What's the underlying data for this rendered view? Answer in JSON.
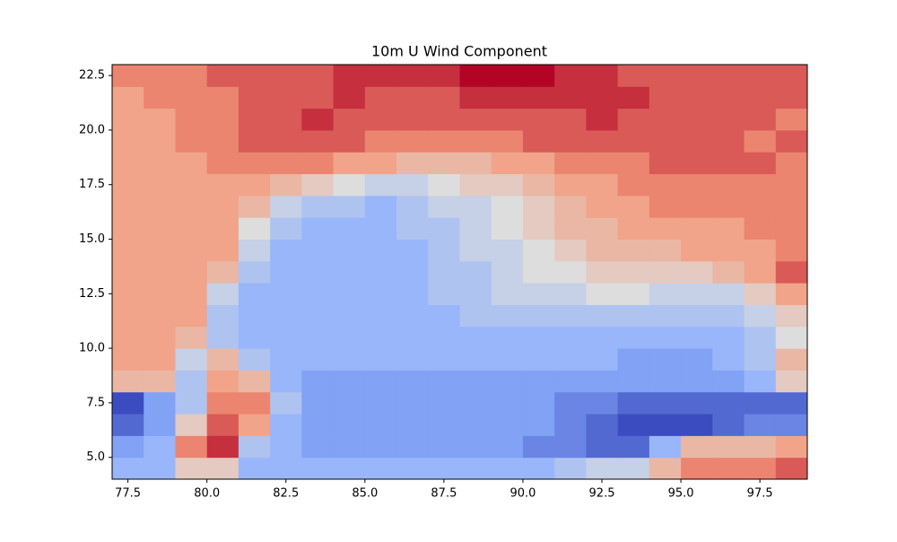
{
  "chart_data": {
    "type": "heatmap",
    "title": "10m U Wind Component",
    "colormap": "coolwarm",
    "xlim": [
      77,
      99
    ],
    "ylim": [
      4,
      23
    ],
    "x": [
      77,
      78,
      79,
      80,
      81,
      82,
      83,
      84,
      85,
      86,
      87,
      88,
      89,
      90,
      91,
      92,
      93,
      94,
      95,
      96,
      97,
      98,
      99
    ],
    "y": [
      4,
      5,
      6,
      7,
      8,
      9,
      10,
      11,
      12,
      13,
      14,
      15,
      16,
      17,
      18,
      19,
      20,
      21,
      22,
      23
    ],
    "xticks": [
      77.5,
      {
        "value": 80,
        "label": "80.0"
      },
      82.5,
      {
        "value": 85,
        "label": "85.0"
      },
      87.5,
      {
        "value": 90,
        "label": "90.0"
      },
      92.5,
      {
        "value": 95,
        "label": "95.0"
      },
      97.5
    ],
    "yticks": [
      {
        "value": 5,
        "label": "5.0"
      },
      7.5,
      {
        "value": 10,
        "label": "10.0"
      },
      12.5,
      {
        "value": 15,
        "label": "15.0"
      },
      17.5,
      {
        "value": 20,
        "label": "20.0"
      },
      22.5
    ],
    "values": [
      [
        -3,
        -3,
        1,
        1,
        -3,
        -3,
        -3,
        -3,
        -3,
        -3,
        -3,
        -3,
        -3,
        -3,
        -2,
        -1,
        -1,
        2,
        4,
        4,
        4,
        5
      ],
      [
        -4,
        -3,
        4,
        6,
        -2,
        -3,
        -4,
        -4,
        -4,
        -4,
        -4,
        -4,
        -4,
        -5,
        -5,
        -6,
        -6,
        -3,
        2,
        2,
        2,
        3
      ],
      [
        -6,
        -4,
        1,
        5,
        3,
        -3,
        -4,
        -4,
        -4,
        -4,
        -4,
        -4,
        -4,
        -4,
        -5,
        -6,
        -7,
        -7,
        -7,
        -6,
        -5,
        -5
      ],
      [
        -7,
        -4,
        -2,
        4,
        4,
        -2,
        -4,
        -4,
        -4,
        -4,
        -4,
        -4,
        -4,
        -4,
        -5,
        -5,
        -6,
        -6,
        -6,
        -6,
        -6,
        -6
      ],
      [
        2,
        2,
        -2,
        3,
        2,
        -3,
        -4,
        -4,
        -4,
        -4,
        -4,
        -4,
        -4,
        -4,
        -4,
        -4,
        -4,
        -4,
        -4,
        -4,
        -3,
        1
      ],
      [
        3,
        3,
        -1,
        2,
        -2,
        -3,
        -3,
        -3,
        -3,
        -3,
        -3,
        -3,
        -3,
        -3,
        -3,
        -3,
        -4,
        -4,
        -4,
        -3,
        -2,
        2
      ],
      [
        3,
        3,
        2,
        -2,
        -3,
        -3,
        -3,
        -3,
        -3,
        -3,
        -3,
        -3,
        -3,
        -3,
        -3,
        -3,
        -3,
        -3,
        -3,
        -3,
        -2,
        0
      ],
      [
        3,
        3,
        3,
        -2,
        -3,
        -3,
        -3,
        -3,
        -3,
        -3,
        -3,
        -2,
        -2,
        -2,
        -2,
        -2,
        -2,
        -2,
        -2,
        -2,
        -1,
        1
      ],
      [
        3,
        3,
        3,
        -1,
        -3,
        -3,
        -3,
        -3,
        -3,
        -3,
        -2,
        -2,
        -1,
        -1,
        -1,
        0,
        0,
        -1,
        -1,
        -1,
        1,
        3
      ],
      [
        3,
        3,
        3,
        2,
        -2,
        -3,
        -3,
        -3,
        -3,
        -3,
        -2,
        -2,
        -1,
        0,
        0,
        1,
        1,
        1,
        1,
        2,
        3,
        5
      ],
      [
        3,
        3,
        3,
        3,
        -1,
        -3,
        -3,
        -3,
        -3,
        -3,
        -2,
        -1,
        -1,
        0,
        1,
        2,
        2,
        2,
        3,
        3,
        3,
        4
      ],
      [
        3,
        3,
        3,
        3,
        0,
        -2,
        -3,
        -3,
        -3,
        -2,
        -2,
        -1,
        0,
        1,
        2,
        2,
        3,
        3,
        3,
        3,
        4,
        4
      ],
      [
        3,
        3,
        3,
        3,
        2,
        -1,
        -2,
        -2,
        -3,
        -2,
        -1,
        -1,
        0,
        1,
        2,
        3,
        3,
        4,
        4,
        4,
        4,
        4
      ],
      [
        3,
        3,
        3,
        3,
        3,
        2,
        1,
        0,
        -1,
        -1,
        0,
        1,
        1,
        2,
        3,
        3,
        4,
        4,
        4,
        4,
        4,
        4
      ],
      [
        3,
        3,
        3,
        4,
        4,
        4,
        4,
        3,
        3,
        2,
        2,
        2,
        3,
        3,
        4,
        4,
        4,
        5,
        5,
        5,
        5,
        4
      ],
      [
        3,
        3,
        4,
        4,
        5,
        5,
        5,
        5,
        4,
        4,
        4,
        4,
        4,
        5,
        5,
        5,
        5,
        5,
        5,
        5,
        4,
        5
      ],
      [
        3,
        3,
        4,
        4,
        5,
        5,
        6,
        5,
        5,
        5,
        5,
        5,
        5,
        5,
        5,
        6,
        5,
        5,
        5,
        5,
        5,
        4
      ],
      [
        3,
        4,
        4,
        4,
        5,
        5,
        5,
        6,
        5,
        5,
        5,
        6,
        6,
        6,
        6,
        6,
        6,
        5,
        5,
        5,
        5,
        5
      ],
      [
        4,
        4,
        4,
        5,
        5,
        5,
        5,
        6,
        6,
        6,
        6,
        7,
        7,
        7,
        6,
        6,
        5,
        5,
        5,
        5,
        5,
        5
      ]
    ]
  }
}
